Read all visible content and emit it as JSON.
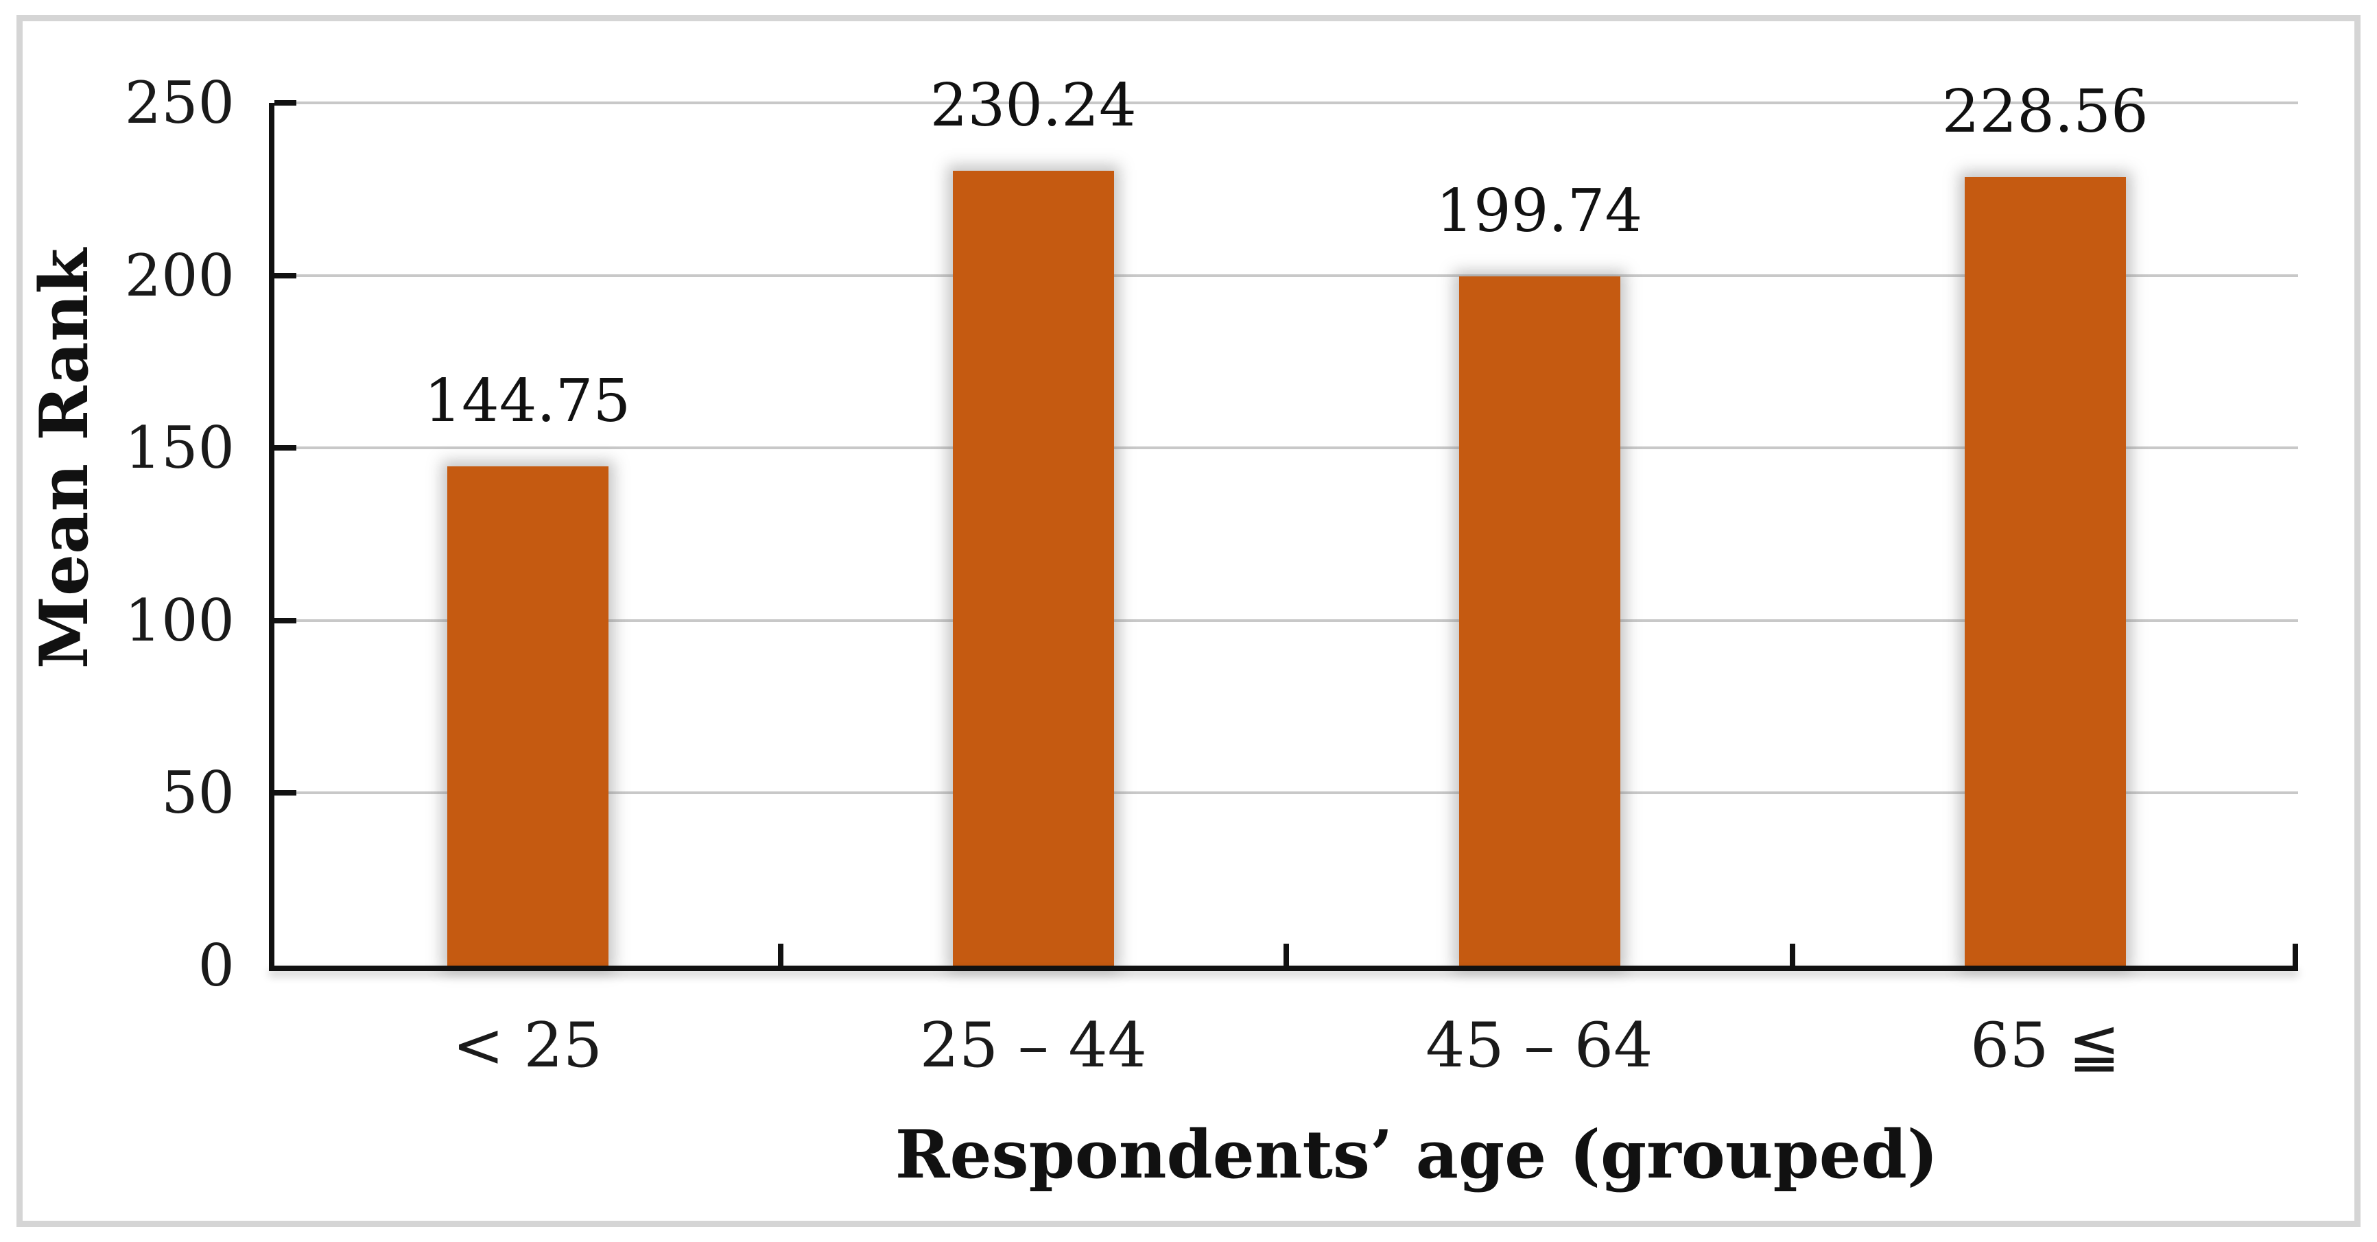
{
  "figure": {
    "background": "#FFFFFF",
    "border_color": "#D5D5D5"
  },
  "chart_data": {
    "type": "bar",
    "title": "",
    "categories": [
      "< 25",
      "25 – 44",
      "45 – 64",
      "65 ≦"
    ],
    "values": [
      144.75,
      230.24,
      199.74,
      228.56
    ],
    "data_labels": [
      "144.75",
      "230.24",
      "199.74",
      "228.56"
    ],
    "xlabel": "Respondents’ age (grouped)",
    "ylabel": "Mean Rank",
    "ylim": [
      0,
      250
    ],
    "yticks": [
      0,
      50,
      100,
      150,
      200,
      250
    ],
    "ytick_labels": [
      "0",
      "50",
      "100",
      "150",
      "200",
      "250"
    ],
    "grid": "horizontal gridlines every 50 units",
    "legend": "none",
    "bar_color": "#C55A11",
    "gridline_color": "#C8C8C8",
    "axis_color": "#111111",
    "tick_style": "inward"
  }
}
